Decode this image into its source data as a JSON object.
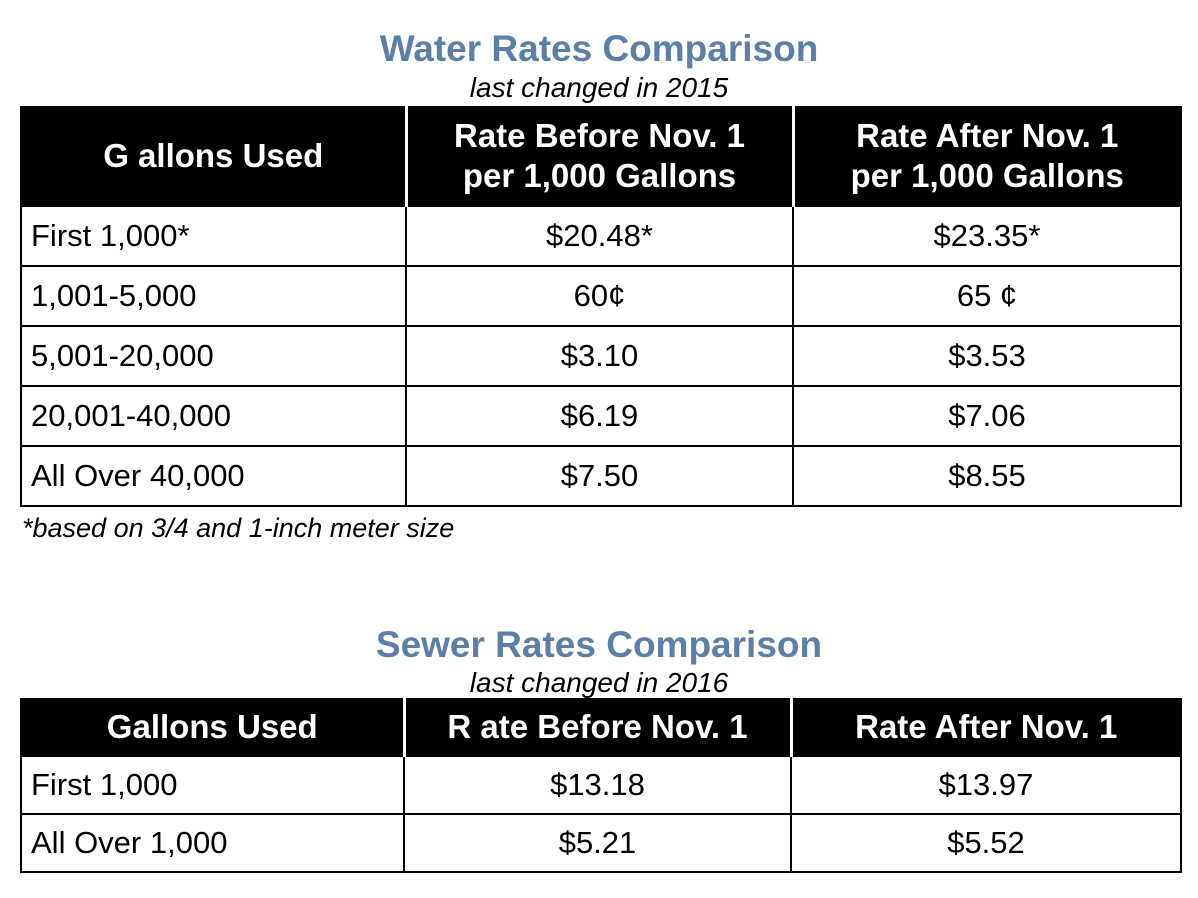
{
  "water": {
    "title": "Water Rates Comparison",
    "subtitle": "last changed in 2015",
    "headers": [
      "G allons Used",
      "Rate Before Nov. 1 per 1,000 Gallons",
      "Rate After Nov. 1 per 1,000 Gallons"
    ],
    "header_lines": [
      [
        "G allons Used"
      ],
      [
        "Rate Before Nov. 1",
        "per 1,000 Gallons"
      ],
      [
        "Rate After Nov. 1",
        "per 1,000 Gallons"
      ]
    ],
    "rows": [
      [
        "First 1,000*",
        "$20.48*",
        "$23.35*"
      ],
      [
        "1,001-5,000",
        "60¢",
        "65 ¢"
      ],
      [
        "5,001-20,000",
        "$3.10",
        "$3.53"
      ],
      [
        "20,001-40,000",
        "$6.19",
        "$7.06"
      ],
      [
        "All Over 40,000",
        "$7.50",
        "$8.55"
      ]
    ],
    "footnote": "*based on 3/4 and 1-inch meter size"
  },
  "sewer": {
    "title": "Sewer Rates Comparison",
    "subtitle": "last changed in 2016",
    "headers": [
      "Gallons Used",
      "R ate Before Nov. 1",
      "Rate After Nov. 1"
    ],
    "rows": [
      [
        "First 1,000",
        "$13.18",
        "$13.97"
      ],
      [
        "All Over 1,000",
        "$5.21",
        "$5.52"
      ]
    ]
  },
  "colors": {
    "title": "#5b7fa6",
    "header_bg": "#000000",
    "header_text": "#ffffff"
  }
}
